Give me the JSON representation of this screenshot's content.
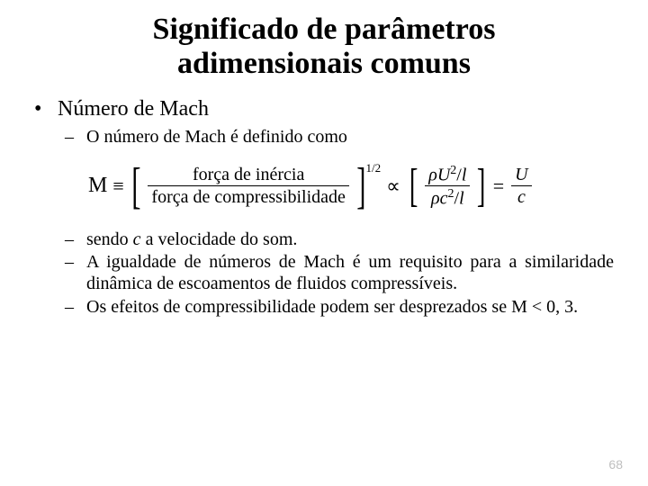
{
  "title_line1": "Significado de parâmetros",
  "title_line2": "adimensionais comuns",
  "heading": "Número de Mach",
  "def_line": "O número de Mach é definido como",
  "formula": {
    "M": "M",
    "equiv": "≡",
    "frac1_num": "força de inércia",
    "frac1_den": "força de compressibilidade",
    "exponent": "1/2",
    "prop": "∝",
    "rho": "ρ",
    "U": "U",
    "c": "c",
    "l": "l",
    "two": "2",
    "eq": "="
  },
  "p1_a": "sendo ",
  "p1_c": "c",
  "p1_b": " a velocidade do som.",
  "p2": "A igualdade de números de Mach é um requisito para a similaridade dinâmica de escoamentos de fluidos compressíveis.",
  "p3": "Os efeitos de compressibilidade podem ser desprezados se M < 0, 3.",
  "bullet_l1": "•",
  "bullet_l2": "–",
  "page_number": "68",
  "colors": {
    "text": "#000000",
    "bg": "#ffffff",
    "pagenum": "#bfbfbf"
  }
}
